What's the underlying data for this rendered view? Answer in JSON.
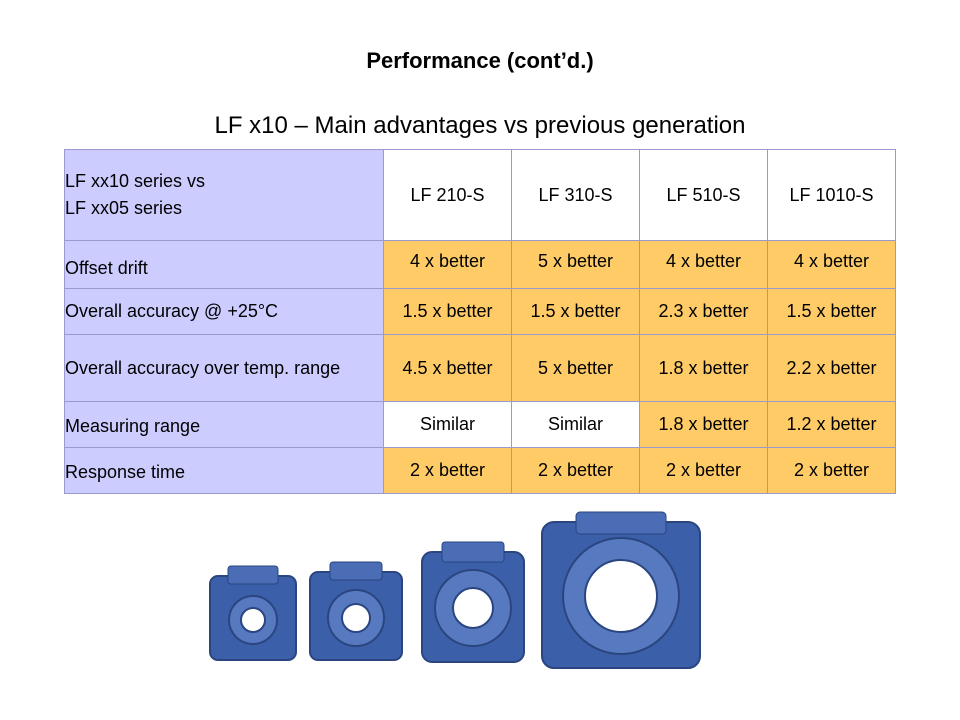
{
  "title": "Performance (cont’d.)",
  "subtitle": "LF x10 – Main advantages vs previous generation",
  "table": {
    "corner_line1": "LF xx10 series vs",
    "corner_line2": "LF xx05 series",
    "columns": [
      "LF 210-S",
      "LF 310-S",
      "LF 510-S",
      "LF 1010-S"
    ],
    "rows": [
      {
        "label": "Offset drift",
        "values": [
          "4 x better",
          "5 x better",
          "4 x better",
          "4 x better"
        ]
      },
      {
        "label": "Overall accuracy @ +25°C",
        "values": [
          "1.5 x better",
          "1.5 x better",
          "2.3 x better",
          "1.5 x better"
        ]
      },
      {
        "label": "Overall accuracy over temp. range",
        "values": [
          "4.5 x better",
          "5 x better",
          "1.8 x better",
          "2.2 x better"
        ]
      },
      {
        "label": "Measuring range",
        "values": [
          "Similar",
          "Similar",
          "1.8 x better",
          "1.2 x better"
        ]
      },
      {
        "label": "Response time",
        "values": [
          "2 x better",
          "2 x better",
          "2 x better",
          "2 x better"
        ]
      }
    ]
  },
  "colors": {
    "row_header": "#ccccff",
    "value_cell": "#fecb66",
    "device": "#3b5fa8"
  }
}
